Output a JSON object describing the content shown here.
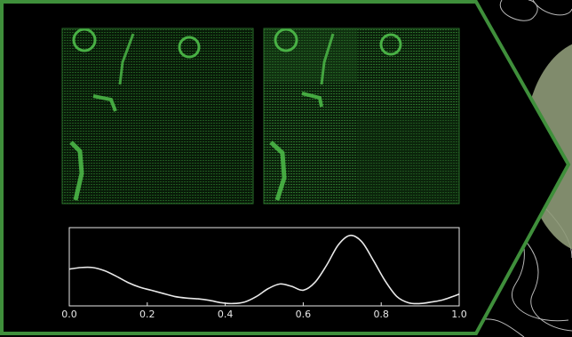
{
  "colors": {
    "background": "#000000",
    "frame_green": "#3f8f3b",
    "micro_green": "#4fbf4a",
    "plot_line": "#e8e8e8",
    "blob": "#8e9a78",
    "topo_line": "#d8d8d8"
  },
  "panels": [
    {
      "name": "micrograph-left"
    },
    {
      "name": "micrograph-right"
    }
  ],
  "chart_data": {
    "type": "line",
    "title": "",
    "xlabel": "",
    "ylabel": "",
    "xlim": [
      0.0,
      1.0
    ],
    "ylim": [
      0.0,
      1.0
    ],
    "xticks": [
      "0.0",
      "0.2",
      "0.4",
      "0.6",
      "0.8",
      "1.0"
    ],
    "grid": false,
    "series": [
      {
        "x": [
          0.0,
          0.03,
          0.06,
          0.09,
          0.12,
          0.15,
          0.18,
          0.21,
          0.24,
          0.27,
          0.3,
          0.33,
          0.36,
          0.39,
          0.42,
          0.45,
          0.48,
          0.51,
          0.54,
          0.57,
          0.6,
          0.63,
          0.66,
          0.69,
          0.72,
          0.75,
          0.78,
          0.81,
          0.84,
          0.87,
          0.9,
          0.93,
          0.96,
          1.0
        ],
        "y": [
          0.47,
          0.49,
          0.49,
          0.45,
          0.38,
          0.3,
          0.24,
          0.2,
          0.16,
          0.12,
          0.1,
          0.09,
          0.07,
          0.04,
          0.03,
          0.05,
          0.12,
          0.22,
          0.28,
          0.25,
          0.2,
          0.3,
          0.52,
          0.78,
          0.9,
          0.82,
          0.58,
          0.32,
          0.12,
          0.04,
          0.03,
          0.05,
          0.08,
          0.15
        ]
      }
    ]
  }
}
